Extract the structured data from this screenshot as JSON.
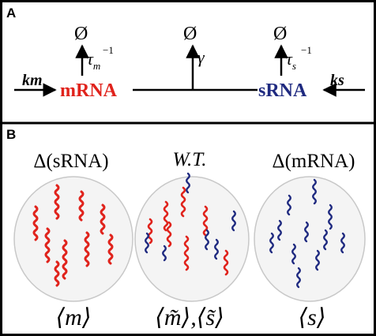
{
  "panel_a": {
    "label": "A",
    "km": "km",
    "mrna": "mRNA",
    "srna": "sRNA",
    "ks": "ks",
    "null_symbol": "Ø",
    "tau": "τ",
    "tau_m_sub": "m",
    "tau_s_sub": "s",
    "exponent": "−1",
    "gamma": "γ"
  },
  "panel_b": {
    "label": "B",
    "col1_title": "Δ(sRNA)",
    "col2_title": "W.T.",
    "col3_title": "Δ(mRNA)",
    "col1_bottom": "⟨m⟩",
    "col2_bottom": "⟨m̃⟩,⟨s̃⟩",
    "col3_bottom": "⟨s⟩"
  },
  "colors": {
    "mrna": "#e0231c",
    "srna": "#1f2a80",
    "frame": "#000000",
    "cell_fill": "#f4f4f4",
    "cell_stroke": "#c8c8c8"
  },
  "cells": [
    {
      "mrna_count": 9,
      "srna_count": 0
    },
    {
      "mrna_count": 7,
      "srna_count": 6
    },
    {
      "mrna_count": 0,
      "srna_count": 11
    }
  ]
}
